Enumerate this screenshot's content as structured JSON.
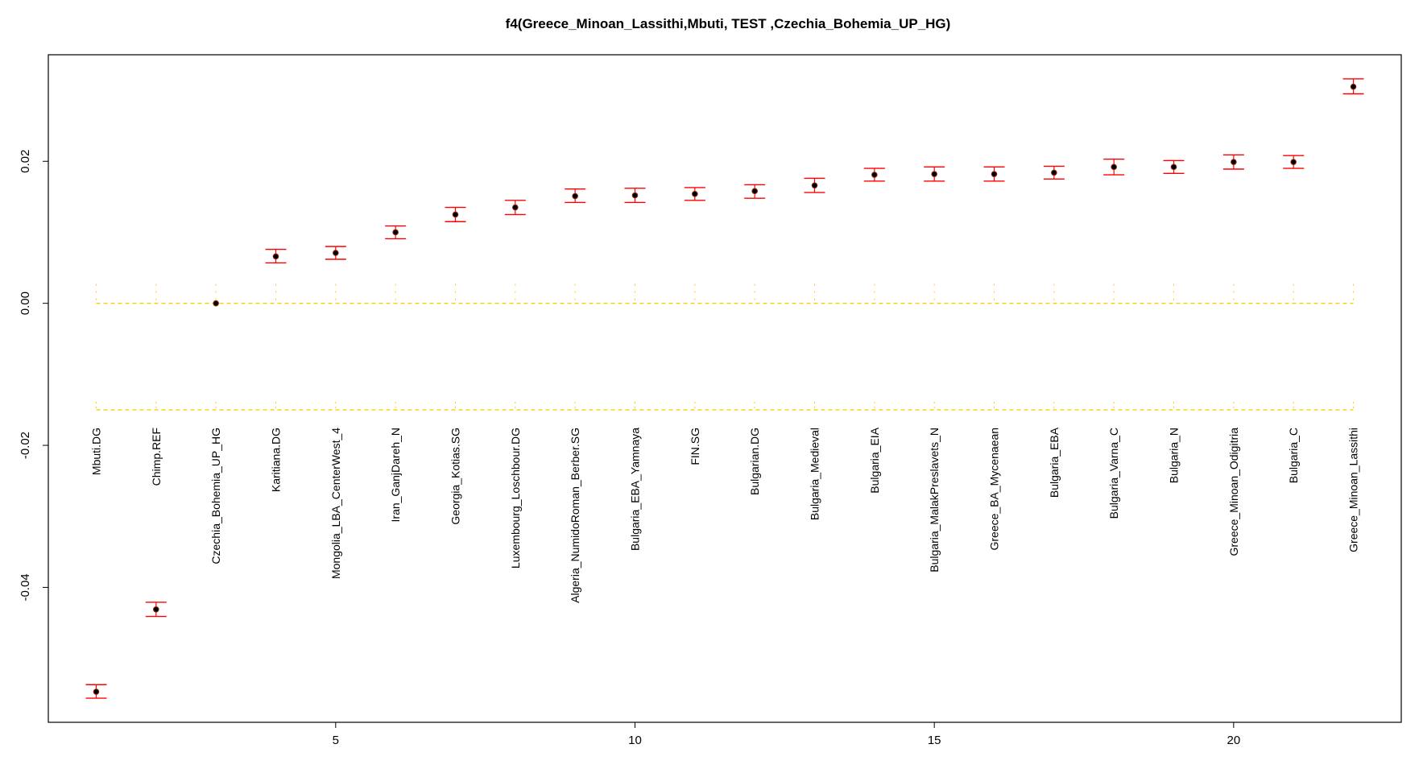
{
  "chart_data": {
    "type": "scatter",
    "title": "f4(Greece_Minoan_Lassithi,Mbuti, TEST ,Czechia_Bohemia_UP_HG)",
    "xlabel": "",
    "ylabel": "",
    "xlim": [
      0.2,
      22.8
    ],
    "ylim": [
      -0.059,
      0.035
    ],
    "x_ticks": [
      5,
      10,
      15,
      20
    ],
    "x_tick_labels": [
      "5",
      "10",
      "15",
      "20"
    ],
    "y_ticks": [
      -0.04,
      -0.02,
      0.0,
      0.02
    ],
    "y_tick_labels": [
      "-0.04",
      "-0.02",
      "0.00",
      "0.02"
    ],
    "grid": false,
    "colors": {
      "point": "#000000",
      "point_outline": "#8b2e16",
      "error_bar": "#ff0000",
      "guide": "#ffcc00"
    },
    "guide_lines_y": [
      0.0,
      -0.015
    ],
    "categories": [
      "Mbuti.DG",
      "Chimp.REF",
      "Czechia_Bohemia_UP_HG",
      "Karitiana.DG",
      "Mongolia_LBA_CenterWest_4",
      "Iran_GanjDareh_N",
      "Georgia_Kotias.SG",
      "Luxembourg_Loschbour.DG",
      "Algeria_NumidoRoman_Berber.SG",
      "Bulgaria_EBA_Yamnaya",
      "FIN.SG",
      "Bulgarian.DG",
      "Bulgaria_Medieval",
      "Bulgaria_EIA",
      "Bulgaria_MalakPreslavets_N",
      "Greece_BA_Mycenaean",
      "Bulgaria_EBA",
      "Bulgaria_Varna_C",
      "Bulgaria_N",
      "Greece_Minoan_Odigitria",
      "Bulgaria_C",
      "Greece_Minoan_Lassithi"
    ],
    "x": [
      1,
      2,
      3,
      4,
      5,
      6,
      7,
      8,
      9,
      10,
      11,
      12,
      13,
      14,
      15,
      16,
      17,
      18,
      19,
      20,
      21,
      22
    ],
    "values": [
      -0.0547,
      -0.0431,
      0.0,
      0.0066,
      0.0071,
      0.01,
      0.0125,
      0.0135,
      0.0151,
      0.0152,
      0.0154,
      0.0158,
      0.0166,
      0.0181,
      0.0182,
      0.0182,
      0.0184,
      0.0192,
      0.0192,
      0.0199,
      0.0199,
      0.0305
    ],
    "lower": [
      -0.0556,
      -0.0441,
      0.0,
      0.0057,
      0.0062,
      0.0091,
      0.0115,
      0.0125,
      0.0142,
      0.0142,
      0.0145,
      0.0148,
      0.0156,
      0.0172,
      0.0172,
      0.0172,
      0.0175,
      0.0181,
      0.0183,
      0.0189,
      0.019,
      0.0295
    ],
    "upper": [
      -0.0537,
      -0.0421,
      0.0,
      0.0076,
      0.008,
      0.0109,
      0.0135,
      0.0145,
      0.0161,
      0.0162,
      0.0163,
      0.0167,
      0.0176,
      0.019,
      0.0192,
      0.0192,
      0.0193,
      0.0203,
      0.0201,
      0.0209,
      0.0208,
      0.0316
    ]
  }
}
